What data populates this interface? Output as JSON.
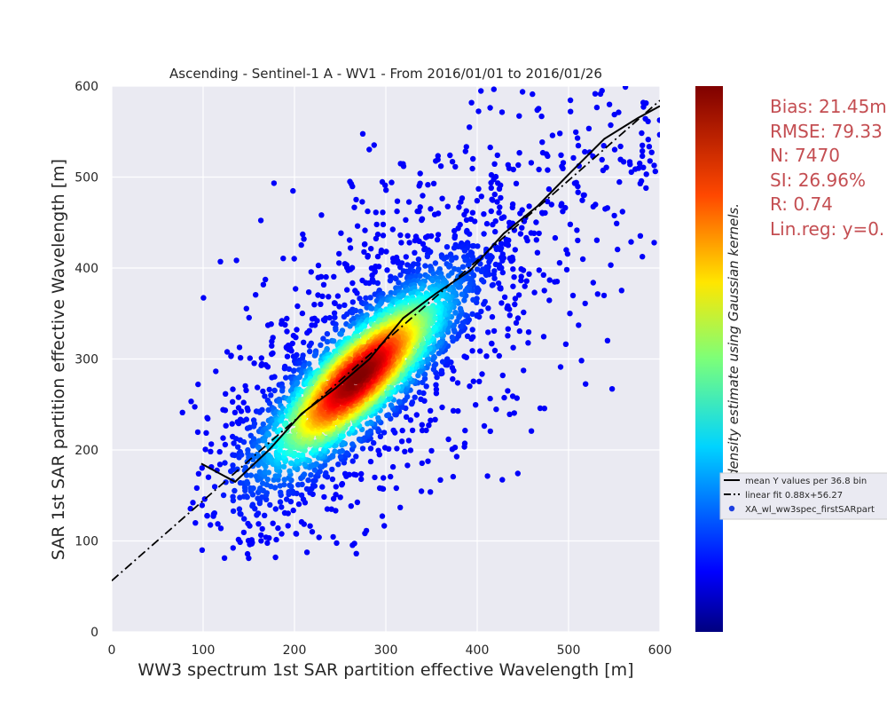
{
  "chart_data": {
    "type": "scatter",
    "title": "Ascending - Sentinel-1 A - WV1 - From 2016/01/01 to 2016/01/26",
    "xlabel": "WW3 spectrum 1st SAR partition effective Wavelength [m]",
    "ylabel": "SAR 1st SAR partition effective Wavelength [m]",
    "xlim": [
      0,
      600
    ],
    "ylim": [
      0,
      600
    ],
    "xticks": [
      0,
      100,
      200,
      300,
      400,
      500,
      600
    ],
    "yticks": [
      0,
      100,
      200,
      300,
      400,
      500,
      600
    ],
    "grid": true,
    "background": "#eaeaf2",
    "colormap": "jet",
    "colorbar_label": "point density estimate using Gaussian kernels.",
    "stats": [
      "Bias: 21.45m",
      "RMSE: 79.33",
      "N: 7470",
      "SI: 26.96%",
      "R: 0.74",
      "Lin.reg: y=0."
    ],
    "stats_color": "#c44e52",
    "legend": [
      "mean Y values per 36.8 bin",
      "linear fit 0.88x+56.27",
      "XA_wl_ww3spec_firstSARpart"
    ],
    "linear_fit": {
      "slope": 0.88,
      "intercept": 56.27
    },
    "mean_y_per_bin": {
      "x": [
        98,
        135,
        172,
        208,
        245,
        282,
        319,
        355,
        392,
        429,
        466,
        502,
        539,
        576,
        600
      ],
      "y": [
        185,
        165,
        200,
        240,
        268,
        300,
        345,
        372,
        397,
        438,
        468,
        505,
        542,
        565,
        578
      ]
    },
    "scatter_samples": {
      "n_points": 7470,
      "core_center": [
        270,
        280
      ],
      "core_spread_along": 75,
      "core_spread_across": 24
    }
  }
}
